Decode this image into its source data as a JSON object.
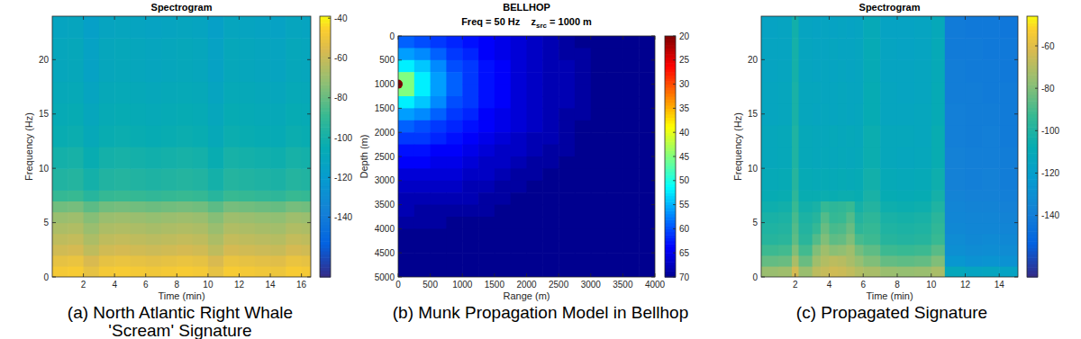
{
  "chart_data": [
    {
      "type": "heatmap",
      "title": "Spectrogram",
      "xlabel": "Time (min)",
      "ylabel": "Frequency (Hz)",
      "caption": [
        "(a) North Atlantic Right Whale",
        "'Scream' Signature"
      ],
      "color": "parula",
      "xlim": [
        0,
        16.6
      ],
      "ylim": [
        0,
        24
      ],
      "xticks": [
        2,
        4,
        6,
        8,
        10,
        12,
        14,
        16
      ],
      "yticks": [
        0,
        5,
        10,
        15,
        20
      ],
      "clim": [
        -170,
        -39
      ],
      "cticks": [
        -140,
        -120,
        -100,
        -80,
        -60,
        -40
      ],
      "x_edges": [
        0,
        1,
        2,
        3,
        4,
        5,
        6,
        7,
        8,
        9,
        10,
        11,
        12,
        13,
        14,
        15,
        16,
        16.6
      ],
      "y_edges": [
        0,
        1,
        2,
        3,
        4,
        5,
        6,
        7,
        8,
        10,
        12,
        14,
        16,
        18,
        20,
        22,
        24
      ],
      "values": [
        [
          -48,
          -47,
          -52,
          -48,
          -47,
          -48,
          -49,
          -48,
          -47,
          -48,
          -52,
          -47,
          -48,
          -49,
          -50,
          -47,
          -48
        ],
        [
          -52,
          -51,
          -56,
          -52,
          -51,
          -52,
          -53,
          -52,
          -51,
          -52,
          -56,
          -51,
          -52,
          -53,
          -54,
          -51,
          -52
        ],
        [
          -58,
          -57,
          -62,
          -58,
          -57,
          -58,
          -59,
          -58,
          -57,
          -58,
          -62,
          -57,
          -58,
          -59,
          -60,
          -57,
          -58
        ],
        [
          -62,
          -61,
          -66,
          -62,
          -61,
          -62,
          -63,
          -62,
          -61,
          -62,
          -66,
          -61,
          -62,
          -63,
          -64,
          -61,
          -62
        ],
        [
          -66,
          -65,
          -70,
          -66,
          -65,
          -66,
          -67,
          -66,
          -65,
          -66,
          -70,
          -65,
          -66,
          -67,
          -68,
          -65,
          -66
        ],
        [
          -70,
          -69,
          -74,
          -70,
          -69,
          -70,
          -71,
          -70,
          -69,
          -70,
          -74,
          -69,
          -70,
          -71,
          -72,
          -69,
          -70
        ],
        [
          -78,
          -77,
          -82,
          -78,
          -77,
          -78,
          -79,
          -78,
          -77,
          -78,
          -82,
          -77,
          -78,
          -79,
          -80,
          -77,
          -78
        ],
        [
          -90,
          -89,
          -94,
          -90,
          -89,
          -90,
          -91,
          -90,
          -89,
          -90,
          -94,
          -89,
          -90,
          -91,
          -92,
          -89,
          -90
        ],
        [
          -96,
          -95,
          -100,
          -96,
          -95,
          -96,
          -97,
          -96,
          -95,
          -96,
          -100,
          -95,
          -96,
          -97,
          -98,
          -95,
          -96
        ],
        [
          -100,
          -99,
          -104,
          -100,
          -99,
          -100,
          -101,
          -100,
          -99,
          -100,
          -104,
          -99,
          -100,
          -101,
          -102,
          -99,
          -100
        ],
        [
          -104,
          -103,
          -108,
          -104,
          -103,
          -104,
          -105,
          -104,
          -103,
          -104,
          -108,
          -103,
          -104,
          -105,
          -106,
          -103,
          -104
        ],
        [
          -106,
          -105,
          -110,
          -106,
          -105,
          -106,
          -107,
          -106,
          -105,
          -106,
          -110,
          -105,
          -106,
          -107,
          -108,
          -105,
          -106
        ],
        [
          -108,
          -107,
          -112,
          -108,
          -107,
          -108,
          -109,
          -108,
          -107,
          -108,
          -112,
          -107,
          -108,
          -109,
          -110,
          -107,
          -108
        ],
        [
          -110,
          -109,
          -114,
          -110,
          -109,
          -110,
          -111,
          -110,
          -109,
          -110,
          -114,
          -109,
          -110,
          -111,
          -112,
          -109,
          -110
        ],
        [
          -110,
          -109,
          -114,
          -110,
          -109,
          -110,
          -111,
          -110,
          -109,
          -110,
          -114,
          -109,
          -110,
          -111,
          -112,
          -109,
          -110
        ],
        [
          -112,
          -111,
          -116,
          -112,
          -111,
          -112,
          -113,
          -112,
          -111,
          -112,
          -116,
          -111,
          -112,
          -113,
          -114,
          -111,
          -112
        ]
      ]
    },
    {
      "type": "heatmap",
      "title": "BELLHOP",
      "subtitle": "Freq = 50 Hz    z",
      "subtitle_subscript": "src",
      "subtitle_end": " = 1000 m",
      "xlabel": "Range (m)",
      "ylabel": "Depth (m)",
      "caption": [
        "(b) Munk Propagation Model in Bellhop"
      ],
      "color": "jet",
      "xlim": [
        0,
        4000
      ],
      "ylim": [
        5000,
        0
      ],
      "xticks": [
        0,
        500,
        1000,
        1500,
        2000,
        2500,
        3000,
        3500,
        4000
      ],
      "yticks": [
        0,
        500,
        1000,
        1500,
        2000,
        2500,
        3000,
        3500,
        4000,
        4500,
        5000
      ],
      "clim": [
        70,
        20
      ],
      "cticks": [
        20,
        25,
        30,
        35,
        40,
        45,
        50,
        55,
        60,
        65,
        70
      ],
      "x_edges": [
        0,
        250,
        500,
        750,
        1000,
        1250,
        1500,
        1750,
        2000,
        2250,
        2500,
        2750,
        3000,
        3250,
        3500,
        3750,
        4000
      ],
      "y_edges": [
        0,
        250,
        500,
        750,
        1000,
        1250,
        1500,
        1750,
        2000,
        2250,
        2500,
        2750,
        3000,
        3250,
        3500,
        3750,
        4000,
        4250,
        4500,
        4750,
        5000
      ],
      "source": {
        "x": 0,
        "y": 1000,
        "value": 20
      },
      "values": [
        [
          59,
          60,
          61,
          62,
          63,
          64,
          65,
          66,
          67,
          68,
          69,
          70,
          70,
          70,
          70,
          70
        ],
        [
          56,
          57,
          59,
          61,
          62,
          64,
          65,
          66,
          67,
          68,
          69,
          69,
          70,
          70,
          70,
          70
        ],
        [
          52,
          54,
          57,
          60,
          61,
          63,
          64,
          66,
          67,
          68,
          68,
          69,
          70,
          70,
          70,
          70
        ],
        [
          45,
          52,
          56,
          59,
          61,
          63,
          64,
          66,
          67,
          68,
          68,
          69,
          70,
          70,
          70,
          70
        ],
        [
          45,
          52,
          56,
          59,
          61,
          63,
          64,
          66,
          67,
          68,
          68,
          69,
          70,
          70,
          70,
          70
        ],
        [
          52,
          54,
          57,
          60,
          61,
          63,
          64,
          66,
          67,
          68,
          68,
          69,
          70,
          70,
          70,
          70
        ],
        [
          56,
          57,
          59,
          61,
          62,
          64,
          65,
          66,
          67,
          68,
          69,
          69,
          70,
          70,
          70,
          70
        ],
        [
          59,
          60,
          61,
          62,
          63,
          64,
          65,
          66,
          67,
          68,
          69,
          70,
          70,
          70,
          70,
          70
        ],
        [
          61,
          61,
          62,
          63,
          64,
          65,
          66,
          67,
          68,
          68,
          69,
          70,
          70,
          70,
          70,
          70
        ],
        [
          63,
          63,
          64,
          64,
          65,
          66,
          67,
          67,
          68,
          69,
          69,
          70,
          70,
          70,
          70,
          70
        ],
        [
          64,
          64,
          65,
          65,
          66,
          67,
          67,
          68,
          69,
          69,
          70,
          70,
          70,
          70,
          70,
          70
        ],
        [
          66,
          66,
          66,
          66,
          67,
          67,
          68,
          69,
          69,
          70,
          70,
          70,
          70,
          70,
          70,
          70
        ],
        [
          67,
          67,
          67,
          67,
          68,
          68,
          69,
          69,
          70,
          70,
          70,
          70,
          70,
          70,
          70,
          70
        ],
        [
          68,
          68,
          68,
          68,
          68,
          69,
          69,
          70,
          70,
          70,
          70,
          70,
          70,
          70,
          70,
          70
        ],
        [
          68,
          69,
          69,
          69,
          69,
          69,
          70,
          70,
          70,
          70,
          70,
          70,
          70,
          70,
          70,
          70
        ],
        [
          69,
          69,
          69,
          70,
          70,
          70,
          70,
          70,
          70,
          70,
          70,
          70,
          70,
          70,
          70,
          70
        ],
        [
          70,
          70,
          70,
          70,
          70,
          70,
          70,
          70,
          70,
          70,
          70,
          70,
          70,
          70,
          70,
          70
        ],
        [
          70,
          70,
          70,
          70,
          70,
          70,
          70,
          70,
          70,
          70,
          70,
          70,
          70,
          70,
          70,
          70
        ],
        [
          70,
          70,
          70,
          70,
          70,
          70,
          70,
          70,
          70,
          70,
          70,
          70,
          70,
          70,
          70,
          70
        ],
        [
          70,
          70,
          70,
          70,
          70,
          70,
          70,
          70,
          70,
          70,
          70,
          70,
          70,
          70,
          70,
          70
        ]
      ]
    },
    {
      "type": "heatmap",
      "title": "Spectrogram",
      "xlabel": "Time (min)",
      "ylabel": "Frequency (Hz)",
      "caption": [
        "(c) Propagated Signature"
      ],
      "color": "parula",
      "xlim": [
        0,
        15.1
      ],
      "ylim": [
        0,
        24
      ],
      "xticks": [
        2,
        4,
        6,
        8,
        10,
        12,
        14
      ],
      "yticks": [
        0,
        5,
        10,
        15,
        20
      ],
      "clim": [
        -169,
        -46
      ],
      "cticks": [
        -140,
        -120,
        -100,
        -80,
        -60
      ],
      "x_edges": [
        0,
        1,
        1.8,
        2.2,
        3,
        3.5,
        4,
        4.5,
        5,
        5.5,
        6,
        7,
        8,
        9,
        10,
        10.8,
        12,
        13,
        14,
        15.1
      ],
      "y_edges": [
        0,
        1,
        2,
        3,
        4,
        5,
        6,
        7,
        8,
        10,
        12,
        14,
        16,
        18,
        20,
        22,
        24
      ],
      "values": [
        [
          -75,
          -74,
          -63,
          -75,
          -68,
          -66,
          -64,
          -65,
          -67,
          -70,
          -72,
          -75,
          -76,
          -75,
          -72,
          -112,
          -115,
          -114,
          -116
        ],
        [
          -85,
          -84,
          -72,
          -84,
          -74,
          -70,
          -68,
          -69,
          -72,
          -76,
          -80,
          -85,
          -86,
          -85,
          -80,
          -125,
          -128,
          -127,
          -128
        ],
        [
          -92,
          -91,
          -80,
          -91,
          -80,
          -74,
          -78,
          -77,
          -74,
          -82,
          -86,
          -92,
          -93,
          -92,
          -87,
          -130,
          -132,
          -131,
          -132
        ],
        [
          -98,
          -97,
          -86,
          -97,
          -88,
          -80,
          -86,
          -85,
          -80,
          -90,
          -92,
          -98,
          -99,
          -98,
          -93,
          -132,
          -134,
          -133,
          -134
        ],
        [
          -100,
          -99,
          -88,
          -99,
          -94,
          -84,
          -90,
          -89,
          -84,
          -96,
          -94,
          -100,
          -101,
          -100,
          -95,
          -134,
          -135,
          -135,
          -136
        ],
        [
          -102,
          -101,
          -90,
          -101,
          -98,
          -88,
          -94,
          -93,
          -88,
          -99,
          -96,
          -102,
          -103,
          -102,
          -97,
          -135,
          -136,
          -136,
          -137
        ],
        [
          -105,
          -104,
          -93,
          -104,
          -102,
          -94,
          -96,
          -95,
          -93,
          -103,
          -99,
          -105,
          -106,
          -105,
          -100,
          -136,
          -137,
          -137,
          -138
        ],
        [
          -108,
          -107,
          -96,
          -107,
          -107,
          -106,
          -107,
          -106,
          -106,
          -107,
          -102,
          -108,
          -109,
          -108,
          -103,
          -137,
          -138,
          -138,
          -139
        ],
        [
          -110,
          -109,
          -98,
          -109,
          -110,
          -109,
          -110,
          -109,
          -110,
          -109,
          -104,
          -110,
          -111,
          -110,
          -105,
          -138,
          -139,
          -138,
          -140
        ],
        [
          -112,
          -111,
          -100,
          -111,
          -112,
          -111,
          -112,
          -111,
          -112,
          -111,
          -106,
          -112,
          -113,
          -112,
          -107,
          -138,
          -139,
          -139,
          -140
        ],
        [
          -112,
          -111,
          -100,
          -111,
          -112,
          -112,
          -111,
          -112,
          -111,
          -112,
          -106,
          -112,
          -112,
          -113,
          -107,
          -139,
          -140,
          -139,
          -141
        ],
        [
          -114,
          -113,
          -102,
          -113,
          -114,
          -113,
          -114,
          -113,
          -114,
          -113,
          -108,
          -114,
          -114,
          -113,
          -109,
          -139,
          -140,
          -140,
          -141
        ],
        [
          -114,
          -113,
          -102,
          -113,
          -113,
          -114,
          -114,
          -113,
          -114,
          -114,
          -108,
          -114,
          -115,
          -114,
          -109,
          -140,
          -140,
          -141,
          -141
        ],
        [
          -115,
          -114,
          -103,
          -114,
          -115,
          -114,
          -115,
          -114,
          -115,
          -114,
          -109,
          -115,
          -115,
          -114,
          -110,
          -140,
          -141,
          -141,
          -142
        ],
        [
          -115,
          -115,
          -103,
          -114,
          -115,
          -115,
          -114,
          -115,
          -115,
          -114,
          -109,
          -115,
          -116,
          -115,
          -110,
          -141,
          -141,
          -142,
          -142
        ],
        [
          -116,
          -115,
          -104,
          -115,
          -116,
          -115,
          -116,
          -115,
          -116,
          -115,
          -110,
          -116,
          -116,
          -115,
          -111,
          -141,
          -142,
          -142,
          -143
        ]
      ]
    }
  ]
}
